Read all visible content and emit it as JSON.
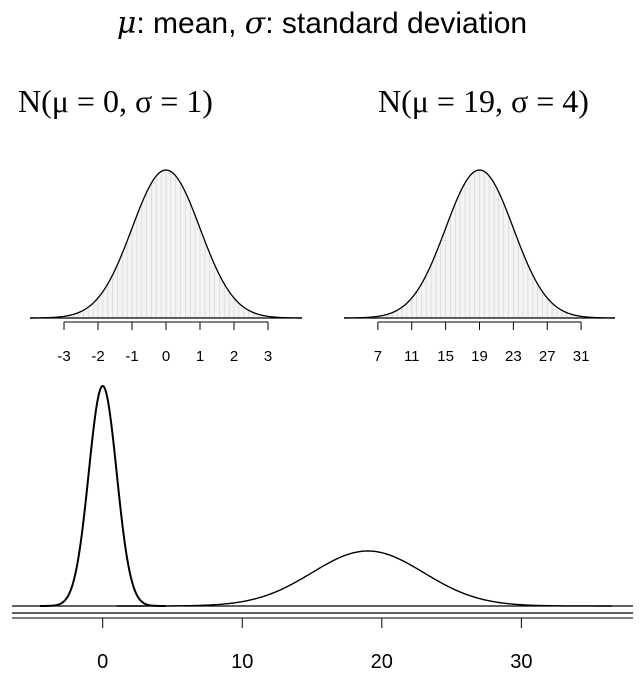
{
  "title": {
    "mu_symbol": "μ",
    "mu_text": ": mean, ",
    "sigma_symbol": "σ",
    "sigma_text": ": standard deviation"
  },
  "chart_data": [
    {
      "type": "area",
      "title": "N(μ = 0, σ = 1)",
      "distribution": "normal",
      "mean": 0,
      "sd": 1,
      "xlim": [
        -4,
        4
      ],
      "xticks": [
        -3,
        -2,
        -1,
        0,
        1,
        2,
        3
      ],
      "xtick_labels": [
        "-3",
        "-2",
        "-1",
        "0",
        "1",
        "2",
        "3"
      ],
      "fill_color": "#f4f4f4",
      "hatch_color": "#d9d9d9",
      "line_color": "#000000"
    },
    {
      "type": "area",
      "title": "N(μ = 19, σ = 4)",
      "distribution": "normal",
      "mean": 19,
      "sd": 4,
      "xlim": [
        3,
        35
      ],
      "xticks": [
        7,
        11,
        15,
        19,
        23,
        27,
        31
      ],
      "xtick_labels": [
        "7",
        "11",
        "15",
        "19",
        "23",
        "27",
        "31"
      ],
      "fill_color": "#f4f4f4",
      "hatch_color": "#d9d9d9",
      "line_color": "#000000"
    },
    {
      "type": "line",
      "series": [
        {
          "distribution": "normal",
          "mean": 0,
          "sd": 1
        },
        {
          "distribution": "normal",
          "mean": 19,
          "sd": 4
        }
      ],
      "xlim": [
        -6.5,
        38
      ],
      "xticks": [
        0,
        10,
        20,
        30
      ],
      "xtick_labels": [
        "0",
        "10",
        "20",
        "30"
      ],
      "line_color": "#000000"
    }
  ]
}
